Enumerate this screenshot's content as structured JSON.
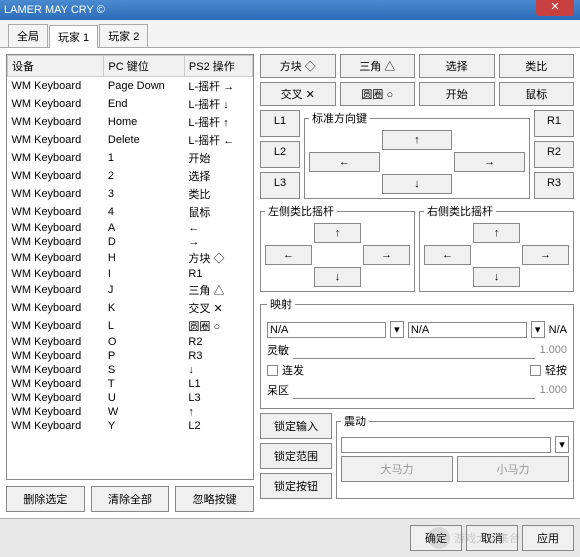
{
  "window": {
    "title": "LAMER MAY CRY ©"
  },
  "tabs": [
    {
      "label": "全局"
    },
    {
      "label": "玩家 1"
    },
    {
      "label": "玩家 2"
    }
  ],
  "table": {
    "cols": [
      "设备",
      "PC 键位",
      "PS2 操作"
    ],
    "rows": [
      [
        "WM Keyboard",
        "Page Down",
        "L-摇杆 →"
      ],
      [
        "WM Keyboard",
        "End",
        "L-摇杆 ↓"
      ],
      [
        "WM Keyboard",
        "Home",
        "L-摇杆 ↑"
      ],
      [
        "WM Keyboard",
        "Delete",
        "L-摇杆 ←"
      ],
      [
        "WM Keyboard",
        "1",
        "开始"
      ],
      [
        "WM Keyboard",
        "2",
        "选择"
      ],
      [
        "WM Keyboard",
        "3",
        "类比"
      ],
      [
        "WM Keyboard",
        "4",
        "鼠标"
      ],
      [
        "WM Keyboard",
        "A",
        "←"
      ],
      [
        "WM Keyboard",
        "D",
        "→"
      ],
      [
        "WM Keyboard",
        "H",
        "方块 ◇"
      ],
      [
        "WM Keyboard",
        "I",
        "R1"
      ],
      [
        "WM Keyboard",
        "J",
        "三角 △"
      ],
      [
        "WM Keyboard",
        "K",
        "交叉 ✕"
      ],
      [
        "WM Keyboard",
        "L",
        "圆圈 ○"
      ],
      [
        "WM Keyboard",
        "O",
        "R2"
      ],
      [
        "WM Keyboard",
        "P",
        "R3"
      ],
      [
        "WM Keyboard",
        "S",
        "↓"
      ],
      [
        "WM Keyboard",
        "T",
        "L1"
      ],
      [
        "WM Keyboard",
        "U",
        "L3"
      ],
      [
        "WM Keyboard",
        "W",
        "↑"
      ],
      [
        "WM Keyboard",
        "Y",
        "L2"
      ]
    ]
  },
  "leftbtns": [
    "删除选定",
    "清除全部",
    "忽略按键"
  ],
  "facebtns": [
    [
      "方块 ◇",
      "三角 △",
      "选择",
      "类比"
    ],
    [
      "交叉 ✕",
      "圆圈 ○",
      "开始",
      "鼠标"
    ]
  ],
  "shoulders": {
    "l": [
      "L1",
      "L2",
      "L3"
    ],
    "r": [
      "R1",
      "R2",
      "R3"
    ]
  },
  "groups": {
    "dpad": "标准方向键",
    "lstick": "左侧类比摇杆",
    "rstick": "右侧类比摇杆",
    "map": "映射",
    "rumble": "震动"
  },
  "arrows": {
    "up": "↑",
    "down": "↓",
    "left": "←",
    "right": "→"
  },
  "map": {
    "na": "N/A",
    "sens": "灵敏",
    "sensval": "1.000",
    "burst": "连发",
    "light": "轻按",
    "dead": "呆区",
    "deadval": "1.000",
    "lockin": "锁定输入",
    "lockrange": "锁定范围",
    "lockbtn": "锁定按钮",
    "big": "大马力",
    "small": "小马力"
  },
  "footer": {
    "ok": "确定",
    "cancel": "取消",
    "apply": "应用"
  },
  "watermark": "游戏大招集台"
}
